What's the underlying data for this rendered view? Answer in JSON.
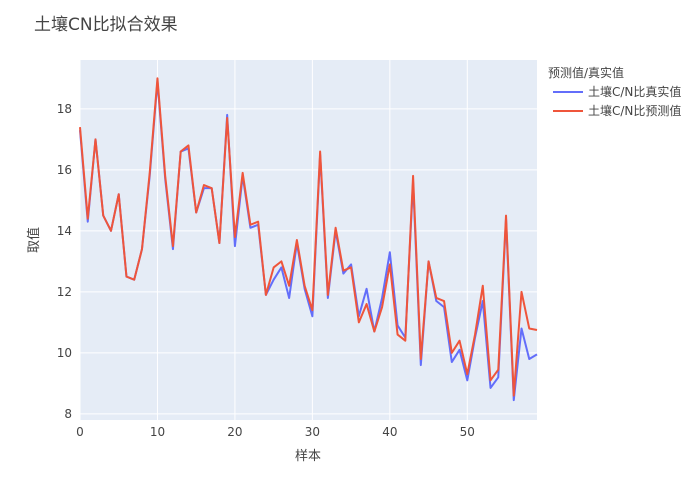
{
  "chart_data": {
    "type": "line",
    "title": "土壤CN比拟合效果",
    "xlabel": "样本",
    "ylabel": "取值",
    "xlim": [
      0,
      59
    ],
    "ylim": [
      7.8,
      19.6
    ],
    "xticks": [
      0,
      10,
      20,
      30,
      40,
      50
    ],
    "yticks": [
      8,
      10,
      12,
      14,
      16,
      18
    ],
    "grid": true,
    "legend_title": "预测值/真实值",
    "legend_position": "right",
    "x": [
      0,
      1,
      2,
      3,
      4,
      5,
      6,
      7,
      8,
      9,
      10,
      11,
      12,
      13,
      14,
      15,
      16,
      17,
      18,
      19,
      20,
      21,
      22,
      23,
      24,
      25,
      26,
      27,
      28,
      29,
      30,
      31,
      32,
      33,
      34,
      35,
      36,
      37,
      38,
      39,
      40,
      41,
      42,
      43,
      44,
      45,
      46,
      47,
      48,
      49,
      50,
      51,
      52,
      53,
      54,
      55,
      56,
      57,
      58,
      59
    ],
    "series": [
      {
        "name": "土壤C/N比真实值",
        "color": "#636efa",
        "values": [
          17.3,
          14.3,
          17.0,
          14.5,
          14.0,
          15.2,
          12.5,
          12.4,
          13.4,
          15.8,
          18.9,
          15.7,
          13.4,
          16.6,
          16.7,
          14.6,
          15.4,
          15.4,
          13.6,
          17.8,
          13.5,
          15.8,
          14.1,
          14.2,
          11.9,
          12.4,
          12.8,
          11.8,
          13.6,
          12.1,
          11.2,
          16.5,
          11.8,
          14.0,
          12.6,
          12.9,
          11.2,
          12.1,
          10.7,
          11.8,
          13.3,
          10.9,
          10.5,
          15.6,
          9.6,
          13.0,
          11.7,
          11.5,
          9.7,
          10.1,
          9.1,
          10.5,
          11.7,
          8.85,
          9.2,
          14.4,
          8.45,
          10.8,
          9.8,
          9.95
        ]
      },
      {
        "name": "土壤C/N比预测值",
        "color": "#ef553b",
        "values": [
          17.4,
          14.4,
          17.0,
          14.5,
          14.0,
          15.2,
          12.5,
          12.4,
          13.4,
          15.9,
          19.0,
          15.8,
          13.5,
          16.6,
          16.8,
          14.6,
          15.5,
          15.4,
          13.6,
          17.7,
          13.8,
          15.9,
          14.2,
          14.3,
          11.9,
          12.8,
          13.0,
          12.2,
          13.7,
          12.2,
          11.4,
          16.6,
          11.9,
          14.1,
          12.7,
          12.8,
          11.0,
          11.6,
          10.7,
          11.5,
          12.9,
          10.6,
          10.4,
          15.8,
          9.8,
          13.0,
          11.8,
          11.7,
          10.0,
          10.4,
          9.3,
          10.6,
          12.2,
          9.1,
          9.45,
          14.5,
          8.6,
          12.0,
          10.8,
          10.75
        ]
      }
    ]
  }
}
